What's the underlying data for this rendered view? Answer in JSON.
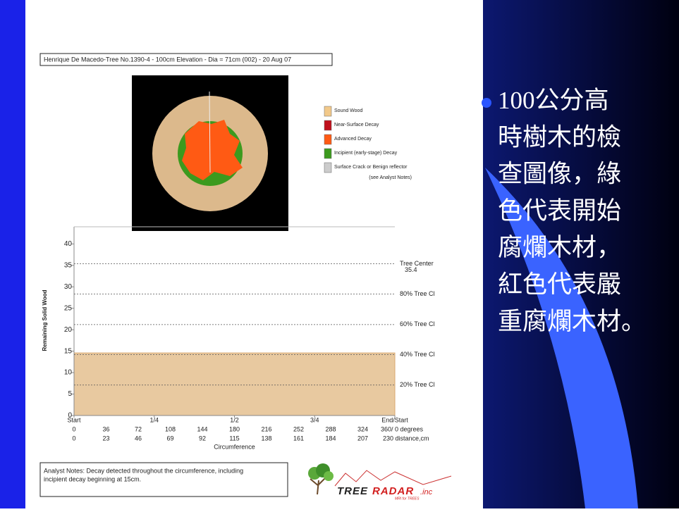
{
  "report": {
    "title": "Henrique De Macedo-Tree No.1390-4 - 100cm Elevation - Dia = 71cm (002) - 20 Aug 07",
    "legend": [
      {
        "label": "Sound Wood",
        "color": "#f2c98a"
      },
      {
        "label": "Near-Surface Decay",
        "color": "#c0101c"
      },
      {
        "label": "Advanced Decay",
        "color": "#ff5a14"
      },
      {
        "label": "Incipient (early-stage) Decay",
        "color": "#3c9a1e"
      },
      {
        "label": "Surface Crack or Benign reflector",
        "color": "#cccccc"
      }
    ],
    "legend_note": "(see Analyst Notes)",
    "analyst_notes": [
      "Analyst Notes:  Decay detected throughout the circumference, including",
      "incipient decay beginning at 15cm."
    ]
  },
  "chart_data": {
    "type": "area",
    "ylabel": "Remaining Solid Wood",
    "xlabel": "Circumference",
    "x": [
      0,
      36,
      72,
      108,
      144,
      180,
      216,
      252,
      288,
      324,
      360
    ],
    "series": [
      {
        "color": "#e8c9a0",
        "values": [
          14.6,
          14.6,
          14.6,
          14.6,
          14.6,
          14.6,
          14.6,
          14.6,
          14.6,
          14.6,
          14.6
        ]
      }
    ],
    "xlim": [
      0,
      360
    ],
    "xticks": [
      0,
      36,
      72,
      108,
      144,
      180,
      216,
      252,
      288,
      324,
      {
        "value": 360,
        "label": "360/ 0 degrees"
      }
    ],
    "quarter_ticks": [
      {
        "value": 0,
        "label": "Start"
      },
      {
        "value": 90,
        "label": "1/4"
      },
      {
        "value": 180,
        "label": "1/2"
      },
      {
        "value": 270,
        "label": "3/4"
      },
      {
        "value": 360,
        "label": "End/Start"
      }
    ],
    "distance_labels": [
      "0",
      "23",
      "46",
      "69",
      "92",
      "115",
      "138",
      "161",
      "184",
      "207",
      "230  distance,cm"
    ],
    "ylim": [
      0,
      44
    ],
    "yticks": [
      0,
      5,
      10,
      15,
      20,
      25,
      30,
      35,
      40
    ],
    "reference_lines": [
      {
        "value": 35.4,
        "label": "Tree Center",
        "value_label": "35.4"
      },
      {
        "value": 28.3,
        "label": "80% Tree Cl"
      },
      {
        "value": 21.2,
        "label": "60% Tree Cl"
      },
      {
        "value": 14.2,
        "label": "40% Tree Cl"
      },
      {
        "value": 7.1,
        "label": "20% Tree Cl"
      }
    ]
  },
  "logo": {
    "tree": "TREE",
    "radar": "RADAR",
    "suffix": ".inc",
    "tagline": "MRI for TREES"
  },
  "bullet_lines": [
    "100公分高",
    "時樹木的檢",
    "查圖像，綠",
    "色代表開始",
    "腐爛木材，",
    "紅色代表嚴",
    "重腐爛木材。"
  ]
}
